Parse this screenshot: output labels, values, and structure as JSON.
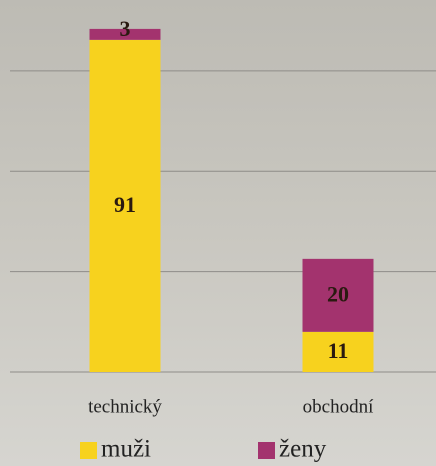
{
  "chart_data": {
    "type": "stacked_bar",
    "categories": [
      "technický",
      "obchodní"
    ],
    "series": [
      {
        "name": "muži",
        "color": "#f7d21e",
        "values": [
          91,
          11
        ]
      },
      {
        "name": "ženy",
        "color": "#a3336e",
        "values": [
          3,
          20
        ]
      }
    ],
    "ylim": [
      0,
      100
    ],
    "yticks": [
      0,
      27.5,
      55,
      82.5
    ],
    "grid": true
  }
}
